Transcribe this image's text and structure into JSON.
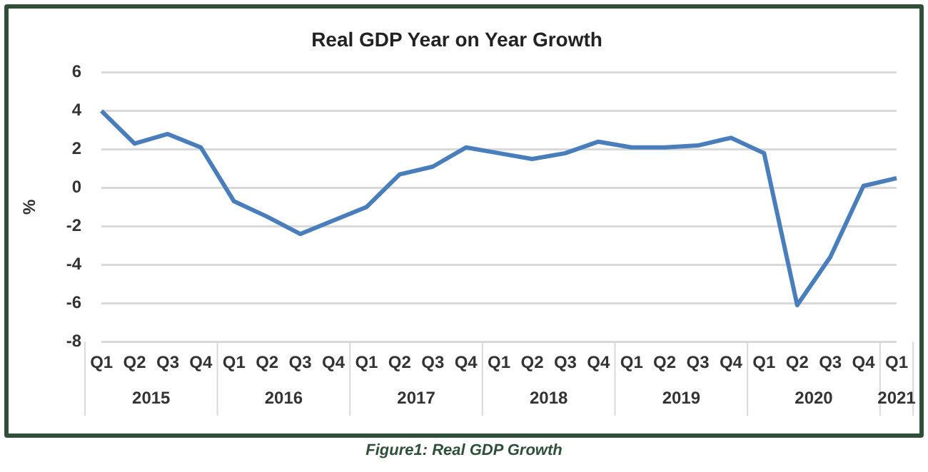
{
  "chart_data": {
    "type": "line",
    "title": "Real GDP Year on Year Growth",
    "ylabel": "%",
    "categories": [
      "Q1",
      "Q2",
      "Q3",
      "Q4",
      "Q1",
      "Q2",
      "Q3",
      "Q4",
      "Q1",
      "Q2",
      "Q3",
      "Q4",
      "Q1",
      "Q2",
      "Q3",
      "Q4",
      "Q1",
      "Q2",
      "Q3",
      "Q4",
      "Q1",
      "Q2",
      "Q3",
      "Q4",
      "Q1"
    ],
    "series": [
      {
        "color": "#4a7ebb",
        "values": [
          4.0,
          2.3,
          2.8,
          2.1,
          -0.7,
          -1.5,
          -2.4,
          -1.7,
          -1.0,
          0.7,
          1.1,
          2.1,
          1.8,
          1.5,
          1.8,
          2.4,
          2.1,
          2.1,
          2.2,
          2.6,
          1.8,
          -6.1,
          -3.6,
          0.1,
          0.5
        ]
      }
    ],
    "ylim": [
      -8,
      6
    ],
    "yticks": [
      -8,
      -6,
      -4,
      -2,
      0,
      2,
      4,
      6
    ],
    "grid": "y",
    "legend": false,
    "marker": "none",
    "line_style": "solid",
    "annotations": [
      "2015",
      "2016",
      "2017",
      "2018",
      "2019",
      "2020",
      "2021",
      "Figure1: Real GDP Growth"
    ]
  }
}
